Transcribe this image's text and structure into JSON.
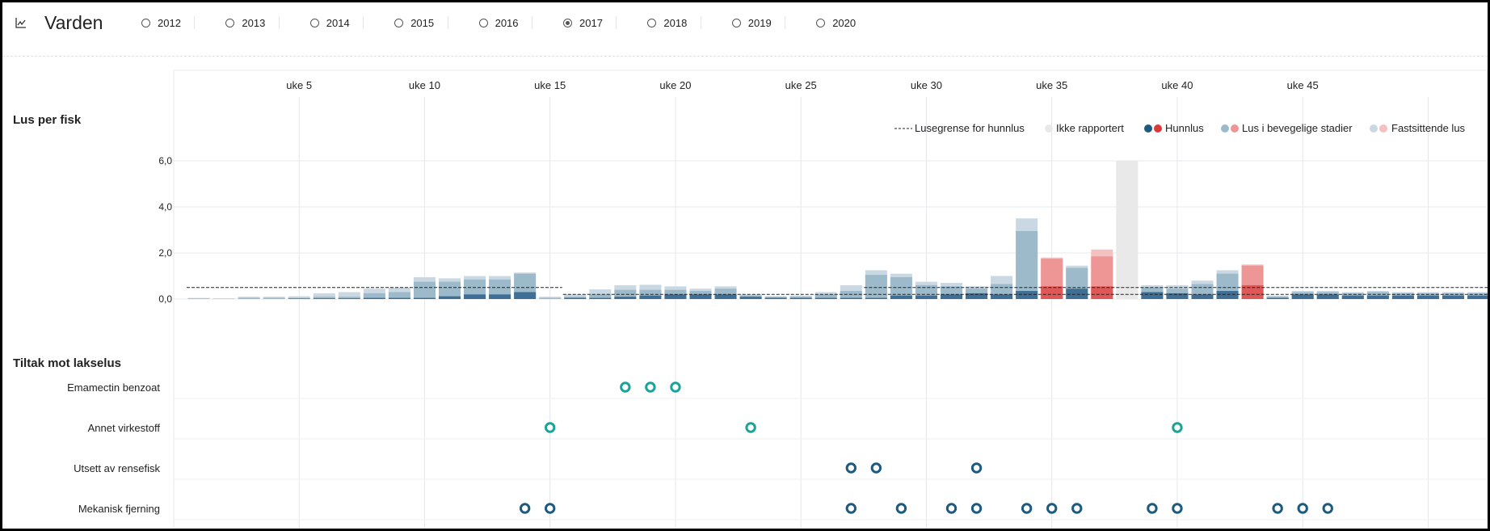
{
  "header": {
    "icon": "line-chart-icon",
    "title": "Varden",
    "years": [
      {
        "label": "2012",
        "selected": false
      },
      {
        "label": "2013",
        "selected": false
      },
      {
        "label": "2014",
        "selected": false
      },
      {
        "label": "2015",
        "selected": false
      },
      {
        "label": "2016",
        "selected": false
      },
      {
        "label": "2017",
        "selected": true
      },
      {
        "label": "2018",
        "selected": false
      },
      {
        "label": "2019",
        "selected": false
      },
      {
        "label": "2020",
        "selected": false
      }
    ]
  },
  "colors": {
    "fixed_blue": "#c9d8e3",
    "mobile_blue": "#9dbacb",
    "female_blue": "#3f6f95",
    "fixed_red": "#f5c0c0",
    "mobile_red": "#ee9696",
    "female_red": "#e05757",
    "not_reported": "#e9e9e9",
    "chem": "#1aa39a",
    "nonchem": "#1c5a80"
  },
  "chart_data": [
    {
      "type": "bar",
      "stacked": true,
      "title": "Lus per fisk",
      "x_tick_labels": [
        "uke 5",
        "uke 10",
        "uke 15",
        "uke 20",
        "uke 25",
        "uke 30",
        "uke 35",
        "uke 40",
        "uke 45"
      ],
      "x_ticks_weeks": [
        5,
        10,
        15,
        20,
        25,
        30,
        35,
        40,
        45
      ],
      "y_tick_labels": [
        "0,0",
        "2,0",
        "4,0",
        "6,0"
      ],
      "ylim": [
        0,
        6
      ],
      "legend_position": "top-right",
      "legend": {
        "threshold": "Lusegrense for hunnlus",
        "not_reported": "Ikke rapportert",
        "female": "Hunnlus",
        "mobile": "Lus i bevegelige stadier",
        "fixed": "Fastsittende lus"
      },
      "threshold_segments": [
        {
          "from_week": 1,
          "to_week": 16,
          "value": 0.5
        },
        {
          "from_week": 16,
          "to_week": 53,
          "value": 0.2
        },
        {
          "from_week": 28,
          "to_week": 53,
          "value": 0.5
        }
      ],
      "bars": [
        {
          "week": 1,
          "female": 0.0,
          "mobile": 0.02,
          "fixed": 0.05
        },
        {
          "week": 2,
          "female": 0.0,
          "mobile": 0.01,
          "fixed": 0.03
        },
        {
          "week": 3,
          "female": 0.0,
          "mobile": 0.05,
          "fixed": 0.1
        },
        {
          "week": 4,
          "female": 0.0,
          "mobile": 0.05,
          "fixed": 0.1
        },
        {
          "week": 5,
          "female": 0.02,
          "mobile": 0.05,
          "fixed": 0.12
        },
        {
          "week": 6,
          "female": 0.03,
          "mobile": 0.1,
          "fixed": 0.25
        },
        {
          "week": 7,
          "female": 0.03,
          "mobile": 0.1,
          "fixed": 0.3
        },
        {
          "week": 8,
          "female": 0.05,
          "mobile": 0.25,
          "fixed": 0.45
        },
        {
          "week": 9,
          "female": 0.05,
          "mobile": 0.3,
          "fixed": 0.5
        },
        {
          "week": 10,
          "female": 0.05,
          "mobile": 0.75,
          "fixed": 0.95
        },
        {
          "week": 11,
          "female": 0.12,
          "mobile": 0.75,
          "fixed": 0.9
        },
        {
          "week": 12,
          "female": 0.2,
          "mobile": 0.85,
          "fixed": 1.0
        },
        {
          "week": 13,
          "female": 0.2,
          "mobile": 0.85,
          "fixed": 1.0
        },
        {
          "week": 14,
          "female": 0.3,
          "mobile": 1.1,
          "fixed": 1.15
        },
        {
          "week": 15,
          "female": 0.0,
          "mobile": 0.05,
          "fixed": 0.1
        },
        {
          "week": 16,
          "female": 0.05,
          "mobile": 0.1,
          "fixed": 0.2
        },
        {
          "week": 17,
          "female": 0.05,
          "mobile": 0.2,
          "fixed": 0.42
        },
        {
          "week": 18,
          "female": 0.1,
          "mobile": 0.4,
          "fixed": 0.6
        },
        {
          "week": 19,
          "female": 0.15,
          "mobile": 0.4,
          "fixed": 0.62
        },
        {
          "week": 20,
          "female": 0.2,
          "mobile": 0.4,
          "fixed": 0.55
        },
        {
          "week": 21,
          "female": 0.2,
          "mobile": 0.35,
          "fixed": 0.45
        },
        {
          "week": 22,
          "female": 0.2,
          "mobile": 0.45,
          "fixed": 0.55
        },
        {
          "week": 23,
          "female": 0.1,
          "mobile": 0.15,
          "fixed": 0.2
        },
        {
          "week": 24,
          "female": 0.05,
          "mobile": 0.1,
          "fixed": 0.12
        },
        {
          "week": 25,
          "female": 0.05,
          "mobile": 0.1,
          "fixed": 0.15
        },
        {
          "week": 26,
          "female": 0.05,
          "mobile": 0.2,
          "fixed": 0.3
        },
        {
          "week": 27,
          "female": 0.05,
          "mobile": 0.35,
          "fixed": 0.6
        },
        {
          "week": 28,
          "female": 0.05,
          "mobile": 1.05,
          "fixed": 1.25
        },
        {
          "week": 29,
          "female": 0.15,
          "mobile": 0.95,
          "fixed": 1.1
        },
        {
          "week": 30,
          "female": 0.15,
          "mobile": 0.6,
          "fixed": 0.75
        },
        {
          "week": 31,
          "female": 0.2,
          "mobile": 0.55,
          "fixed": 0.7
        },
        {
          "week": 32,
          "female": 0.25,
          "mobile": 0.45,
          "fixed": 0.55
        },
        {
          "week": 33,
          "female": 0.2,
          "mobile": 0.65,
          "fixed": 1.0
        },
        {
          "week": 34,
          "female": 0.35,
          "mobile": 2.95,
          "fixed": 3.5
        },
        {
          "week": 35,
          "female": 0.55,
          "mobile": 1.75,
          "fixed": 1.8,
          "red": true
        },
        {
          "week": 36,
          "female": 0.45,
          "mobile": 1.35,
          "fixed": 1.45
        },
        {
          "week": 37,
          "female": 0.55,
          "mobile": 1.85,
          "fixed": 2.15,
          "red": true
        },
        {
          "week": 38,
          "not_reported": true,
          "value": 6.0
        },
        {
          "week": 39,
          "female": 0.3,
          "mobile": 0.5,
          "fixed": 0.6
        },
        {
          "week": 40,
          "female": 0.25,
          "mobile": 0.45,
          "fixed": 0.6
        },
        {
          "week": 41,
          "female": 0.2,
          "mobile": 0.65,
          "fixed": 0.8
        },
        {
          "week": 42,
          "female": 0.35,
          "mobile": 1.1,
          "fixed": 1.25
        },
        {
          "week": 43,
          "female": 0.6,
          "mobile": 1.45,
          "fixed": 1.5,
          "red": true
        },
        {
          "week": 44,
          "female": 0.05,
          "mobile": 0.1,
          "fixed": 0.15
        },
        {
          "week": 45,
          "female": 0.2,
          "mobile": 0.3,
          "fixed": 0.35
        },
        {
          "week": 46,
          "female": 0.2,
          "mobile": 0.3,
          "fixed": 0.35
        },
        {
          "week": 47,
          "female": 0.15,
          "mobile": 0.25,
          "fixed": 0.3
        },
        {
          "week": 48,
          "female": 0.15,
          "mobile": 0.3,
          "fixed": 0.35
        },
        {
          "week": 49,
          "female": 0.15,
          "mobile": 0.25,
          "fixed": 0.3
        },
        {
          "week": 50,
          "female": 0.15,
          "mobile": 0.25,
          "fixed": 0.3
        },
        {
          "week": 51,
          "female": 0.15,
          "mobile": 0.25,
          "fixed": 0.3
        },
        {
          "week": 52,
          "female": 0.15,
          "mobile": 0.25,
          "fixed": 0.3
        }
      ]
    },
    {
      "type": "scatter",
      "title": "Tiltak mot lakselus",
      "rows": [
        {
          "label": "Emamectin benzoat",
          "kind": "chem",
          "weeks": [
            18,
            19,
            20
          ]
        },
        {
          "label": "Annet virkestoff",
          "kind": "chem",
          "weeks": [
            15,
            23,
            40
          ]
        },
        {
          "label": "Utsett av rensefisk",
          "kind": "nonchem",
          "weeks": [
            27,
            28,
            32
          ]
        },
        {
          "label": "Mekanisk fjerning",
          "kind": "nonchem",
          "weeks": [
            14,
            15,
            27,
            29,
            31,
            32,
            34,
            35,
            36,
            39,
            40,
            44,
            45,
            46
          ]
        }
      ]
    }
  ]
}
